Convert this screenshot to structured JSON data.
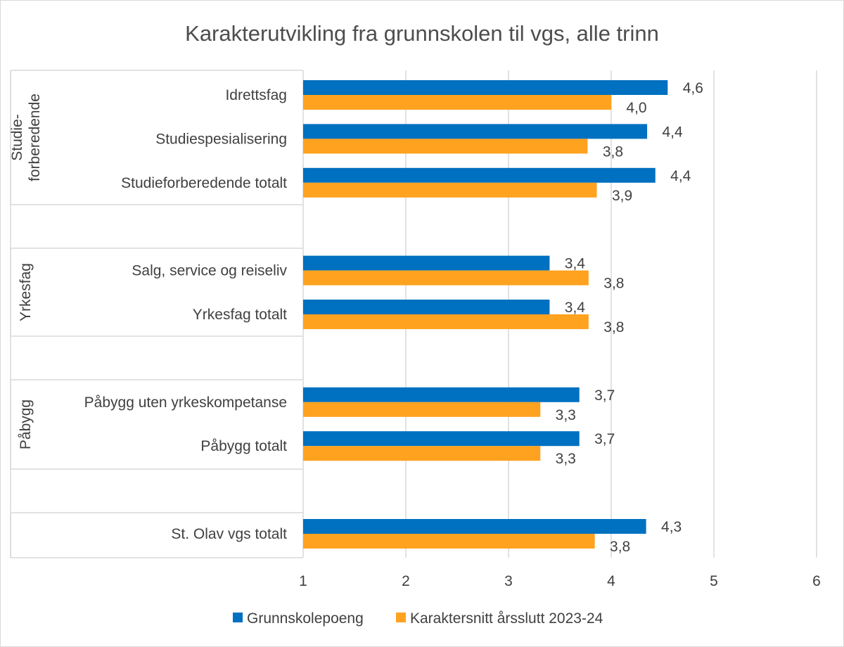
{
  "chart_data": {
    "type": "bar",
    "orientation": "horizontal",
    "title": "Karakterutvikling fra grunnskolen til vgs, alle trinn",
    "xlim": [
      1,
      6
    ],
    "x_ticks": [
      "1",
      "2",
      "3",
      "4",
      "5",
      "6"
    ],
    "grid": true,
    "legend_position": "bottom",
    "series": [
      {
        "name": "Grunnskolepoeng",
        "color": "#0070c0"
      },
      {
        "name": "Karaktersnitt årsslutt 2023-24",
        "color": "#ffa21f"
      }
    ],
    "groups": [
      {
        "label_lines": [
          "Studie-",
          "forberedende"
        ]
      },
      {
        "label_lines": [
          "Yrkesfag"
        ]
      },
      {
        "label_lines": [
          "Påbygg"
        ]
      },
      {
        "label_lines": []
      }
    ],
    "rows": [
      {
        "group": 0,
        "category": "Idrettsfag",
        "values": [
          4.55,
          4.0
        ],
        "labels": [
          "4,6",
          "4,0"
        ]
      },
      {
        "group": 0,
        "category": "Studiespesialisering",
        "values": [
          4.35,
          3.77
        ],
        "labels": [
          "4,4",
          "3,8"
        ]
      },
      {
        "group": 0,
        "category": "Studieforberedende totalt",
        "values": [
          4.43,
          3.86
        ],
        "labels": [
          "4,4",
          "3,9"
        ]
      },
      {
        "group": 1,
        "category": "Salg, service og reiseliv",
        "values": [
          3.4,
          3.78
        ],
        "labels": [
          "3,4",
          "3,8"
        ]
      },
      {
        "group": 1,
        "category": "Yrkesfag totalt",
        "values": [
          3.4,
          3.78
        ],
        "labels": [
          "3,4",
          "3,8"
        ]
      },
      {
        "group": 2,
        "category": "Påbygg uten yrkeskompetanse",
        "values": [
          3.69,
          3.31
        ],
        "labels": [
          "3,7",
          "3,3"
        ]
      },
      {
        "group": 2,
        "category": "Påbygg totalt",
        "values": [
          3.69,
          3.31
        ],
        "labels": [
          "3,7",
          "3,3"
        ]
      },
      {
        "group": 3,
        "category": "St. Olav vgs totalt",
        "values": [
          4.34,
          3.84
        ],
        "labels": [
          "4,3",
          "3,8"
        ]
      }
    ]
  }
}
